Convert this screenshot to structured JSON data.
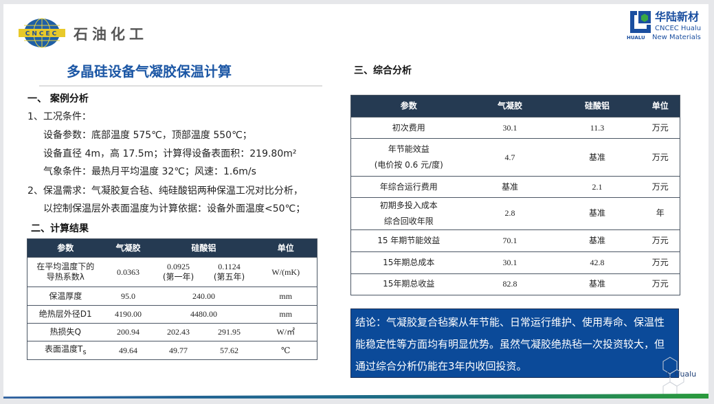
{
  "logos": {
    "left_emblem": "CNCEC",
    "left_text": "石油化工",
    "right_cn": "华陆新材",
    "right_en1": "CNCEC Hualu",
    "right_en2": "New Materials",
    "right_mark": "HUALU",
    "watermark": "C Hualu"
  },
  "colors": {
    "title": "#1c57a5",
    "table_header": "#253a52",
    "conclusion_bg": "#0b4a99"
  },
  "title": "多晶硅设备气凝胶保温计算",
  "section1": {
    "heading": "一、 案例分析",
    "lines": [
      "1、工况条件：",
      "设备参数：底部温度 575℃，顶部温度 550℃；",
      "设备直径 4m，高 17.5m；计算得设备表面积：219.80m²",
      "气象条件：最热月平均温度 32℃；风速：1.6m/s",
      "2、保温需求：气凝胶复合毡、纯硅酸铝两种保温工况对比分析，",
      "以控制保温层外表面温度为计算依据：设备外面温度<50℃；"
    ]
  },
  "section2": {
    "heading": "二、计算结果",
    "headers": [
      "参数",
      "气凝胶",
      "硅酸铝",
      "单位"
    ],
    "rows": [
      {
        "param": "在平均温度下的导热系数λ",
        "aerogel": "0.0363",
        "s1": "0.0925\n(第一年)",
        "s1a": "0.0925",
        "s1b": "(第一年)",
        "s2a": "0.1124",
        "s2b": "(第五年)",
        "unit": "W/(mK)"
      },
      {
        "param": "保温厚度",
        "aerogel": "95.0",
        "s": "240.00",
        "unit": "mm"
      },
      {
        "param": "绝热层外径D1",
        "aerogel": "4190.00",
        "s": "4480.00",
        "unit": "mm"
      },
      {
        "param": "热损失Q",
        "aerogel": "200.94",
        "s1": "202.43",
        "s2": "291.95",
        "unit": "W/㎡"
      },
      {
        "param": "表面温度T",
        "param_sub": "s",
        "aerogel": "49.64",
        "s1": "49.77",
        "s2": "57.62",
        "unit": "℃"
      }
    ],
    "row0_param_l1": "在平均温度下的",
    "row0_param_l2": "导热系数λ"
  },
  "section3": {
    "heading": "三、综合分析",
    "headers": [
      "参数",
      "气凝胶",
      "硅酸铝",
      "单位"
    ],
    "rows": [
      {
        "p1": "初次费用",
        "a": "30.1",
        "s": "11.3",
        "u": "万元"
      },
      {
        "p1": "年节能效益",
        "p2": "(电价按 0.6 元/度)",
        "a": "4.7",
        "s": "基准",
        "u": "万元"
      },
      {
        "p1": "年综合运行费用",
        "a": "基准",
        "s": "2.1",
        "u": "万元"
      },
      {
        "p1": "初期多投入成本",
        "p2": "综合回收年限",
        "a": "2.8",
        "s": "基准",
        "u": "年"
      },
      {
        "p1": "15 年期节能效益",
        "a": "70.1",
        "s": "基准",
        "u": "万元"
      },
      {
        "p1": "15年期总成本",
        "a": "30.1",
        "s": "42.8",
        "u": "万元"
      },
      {
        "p1": "15年期总收益",
        "a": "82.8",
        "s": "基准",
        "u": "万元"
      }
    ]
  },
  "conclusion": "结论：气凝胶复合毡案从年节能、日常运行维护、使用寿命、保温性能稳定性等方面均有明显优势。虽然气凝胶绝热毡一次投资较大，但通过综合分析仍能在3年内收回投资。"
}
